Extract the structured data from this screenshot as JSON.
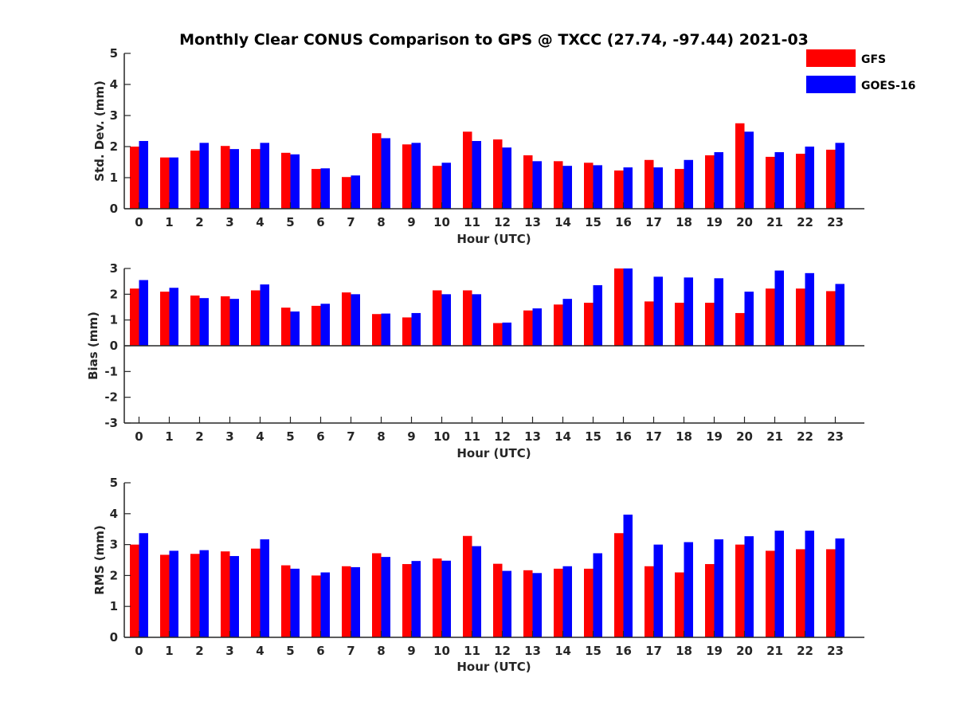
{
  "figure_title": "Monthly Clear CONUS Comparison to GPS @ TXCC (27.74, -97.44) 2021-03",
  "legend": [
    {
      "label": "GFS",
      "color": "#ff0000"
    },
    {
      "label": "GOES-16",
      "color": "#0000ff"
    }
  ],
  "chart_data": [
    {
      "type": "bar",
      "xlabel": "Hour (UTC)",
      "ylabel": "Std. Dev. (mm)",
      "ylim": [
        0,
        5
      ],
      "yticks": [
        0,
        1,
        2,
        3,
        4,
        5
      ],
      "categories": [
        "0",
        "1",
        "2",
        "3",
        "4",
        "5",
        "6",
        "7",
        "8",
        "9",
        "10",
        "11",
        "12",
        "13",
        "14",
        "15",
        "16",
        "17",
        "18",
        "19",
        "20",
        "21",
        "22",
        "23"
      ],
      "series": [
        {
          "name": "GFS",
          "color": "#ff0000",
          "values": [
            2.0,
            1.65,
            1.87,
            2.02,
            1.92,
            1.8,
            1.28,
            1.02,
            2.43,
            2.07,
            1.38,
            2.48,
            2.23,
            1.72,
            1.53,
            1.48,
            1.23,
            1.57,
            1.28,
            1.72,
            2.75,
            1.67,
            1.77,
            1.9
          ]
        },
        {
          "name": "GOES-16",
          "color": "#0000ff",
          "values": [
            2.18,
            1.65,
            2.12,
            1.92,
            2.12,
            1.75,
            1.3,
            1.07,
            2.27,
            2.12,
            1.48,
            2.18,
            1.97,
            1.53,
            1.38,
            1.4,
            1.33,
            1.33,
            1.57,
            1.82,
            2.48,
            1.82,
            2.0,
            2.12
          ]
        }
      ]
    },
    {
      "type": "bar",
      "xlabel": "Hour (UTC)",
      "ylabel": "Bias (mm)",
      "ylim": [
        -3,
        3
      ],
      "yticks": [
        -3,
        -2,
        -1,
        0,
        1,
        2,
        3
      ],
      "categories": [
        "0",
        "1",
        "2",
        "3",
        "4",
        "5",
        "6",
        "7",
        "8",
        "9",
        "10",
        "11",
        "12",
        "13",
        "14",
        "15",
        "16",
        "17",
        "18",
        "19",
        "20",
        "21",
        "22",
        "23"
      ],
      "series": [
        {
          "name": "GFS",
          "color": "#ff0000",
          "values": [
            2.22,
            2.1,
            1.95,
            1.92,
            2.15,
            1.48,
            1.55,
            2.07,
            1.23,
            1.1,
            2.15,
            2.15,
            0.88,
            1.37,
            1.6,
            1.67,
            3.0,
            1.72,
            1.67,
            1.67,
            1.27,
            2.22,
            2.22,
            2.12
          ]
        },
        {
          "name": "GOES-16",
          "color": "#0000ff",
          "values": [
            2.55,
            2.25,
            1.85,
            1.82,
            2.38,
            1.33,
            1.63,
            2.0,
            1.25,
            1.27,
            2.0,
            2.0,
            0.9,
            1.45,
            1.82,
            2.35,
            3.0,
            2.68,
            2.65,
            2.62,
            2.1,
            2.92,
            2.82,
            2.4
          ]
        }
      ]
    },
    {
      "type": "bar",
      "xlabel": "Hour (UTC)",
      "ylabel": "RMS (mm)",
      "ylim": [
        0,
        5
      ],
      "yticks": [
        0,
        1,
        2,
        3,
        4,
        5
      ],
      "categories": [
        "0",
        "1",
        "2",
        "3",
        "4",
        "5",
        "6",
        "7",
        "8",
        "9",
        "10",
        "11",
        "12",
        "13",
        "14",
        "15",
        "16",
        "17",
        "18",
        "19",
        "20",
        "21",
        "22",
        "23"
      ],
      "series": [
        {
          "name": "GFS",
          "color": "#ff0000",
          "values": [
            3.0,
            2.67,
            2.7,
            2.78,
            2.87,
            2.33,
            2.0,
            2.3,
            2.72,
            2.37,
            2.55,
            3.28,
            2.38,
            2.17,
            2.22,
            2.22,
            3.37,
            2.3,
            2.1,
            2.37,
            3.0,
            2.8,
            2.85,
            2.85
          ]
        },
        {
          "name": "GOES-16",
          "color": "#0000ff",
          "values": [
            3.37,
            2.8,
            2.82,
            2.63,
            3.17,
            2.22,
            2.1,
            2.27,
            2.6,
            2.47,
            2.48,
            2.95,
            2.15,
            2.08,
            2.3,
            2.72,
            3.97,
            3.0,
            3.08,
            3.17,
            3.27,
            3.45,
            3.45,
            3.2
          ]
        }
      ]
    }
  ]
}
